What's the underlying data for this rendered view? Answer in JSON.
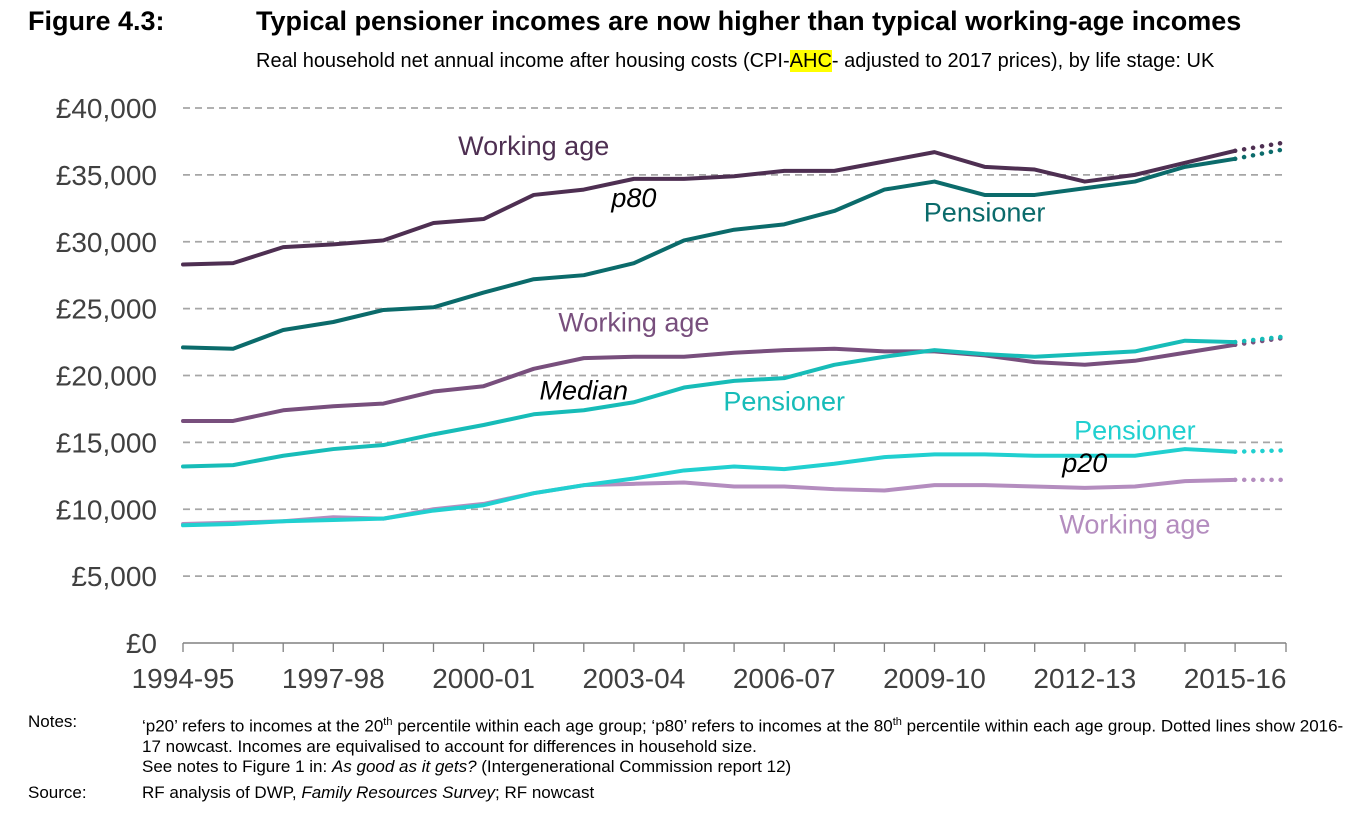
{
  "figure": {
    "label": "Figure 4.3:",
    "title": "Typical pensioner incomes are now higher than typical working-age incomes",
    "subtitle_pre": "Real household net annual income after housing costs (CPI-",
    "subtitle_highlight": "AHC",
    "subtitle_post": "- adjusted to 2017 prices), by life stage: UK"
  },
  "chart_data": {
    "type": "line",
    "x": [
      "1994-95",
      "1995-96",
      "1996-97",
      "1997-98",
      "1998-99",
      "1999-00",
      "2000-01",
      "2001-02",
      "2002-03",
      "2003-04",
      "2004-05",
      "2005-06",
      "2006-07",
      "2007-08",
      "2008-09",
      "2009-10",
      "2010-11",
      "2011-12",
      "2012-13",
      "2013-14",
      "2014-15",
      "2015-16",
      "2016-17"
    ],
    "x_tick_labels": [
      "1994-95",
      "1997-98",
      "2000-01",
      "2003-04",
      "2006-07",
      "2009-10",
      "2012-13",
      "2015-16"
    ],
    "y_tick_labels": [
      "£0",
      "£5,000",
      "£10,000",
      "£15,000",
      "£20,000",
      "£25,000",
      "£30,000",
      "£35,000",
      "£40,000"
    ],
    "ylim": [
      0,
      40000
    ],
    "grid": "horizontal dashed",
    "nowcast_from": "2015-16",
    "series": [
      {
        "id": "p80_working",
        "color": "#4e2f52",
        "values": [
          28300,
          28400,
          29600,
          29800,
          30100,
          31400,
          31700,
          33500,
          33900,
          34700,
          34700,
          34900,
          35300,
          35300,
          36000,
          36700,
          35600,
          35400,
          34500,
          35000,
          35900,
          36800,
          37400
        ]
      },
      {
        "id": "p80_pensioner",
        "color": "#0b6b6b",
        "values": [
          22100,
          22000,
          23400,
          24000,
          24900,
          25100,
          26200,
          27200,
          27500,
          28400,
          30100,
          30900,
          31300,
          32300,
          33900,
          34500,
          33500,
          33500,
          34000,
          34500,
          35600,
          36200,
          36900
        ]
      },
      {
        "id": "median_working",
        "color": "#784f7d",
        "values": [
          16600,
          16600,
          17400,
          17700,
          17900,
          18800,
          19200,
          20500,
          21300,
          21400,
          21400,
          21700,
          21900,
          22000,
          21800,
          21800,
          21500,
          21000,
          20800,
          21100,
          21700,
          22300,
          22800
        ]
      },
      {
        "id": "median_pensioner",
        "color": "#17bcb8",
        "values": [
          13200,
          13300,
          14000,
          14500,
          14800,
          15600,
          16300,
          17100,
          17400,
          18000,
          19100,
          19600,
          19800,
          20800,
          21400,
          21900,
          21600,
          21400,
          21600,
          21800,
          22600,
          22500,
          22900
        ]
      },
      {
        "id": "p20_working",
        "color": "#b48dbf",
        "values": [
          8900,
          9000,
          9100,
          9400,
          9300,
          10000,
          10400,
          11200,
          11800,
          11900,
          12000,
          11700,
          11700,
          11500,
          11400,
          11800,
          11800,
          11700,
          11600,
          11700,
          12100,
          12200,
          12200
        ]
      },
      {
        "id": "p20_pensioner",
        "color": "#21d0d0",
        "values": [
          8800,
          8900,
          9100,
          9200,
          9300,
          9900,
          10300,
          11200,
          11800,
          12300,
          12900,
          13200,
          13000,
          13400,
          13900,
          14100,
          14100,
          14000,
          14000,
          14000,
          14500,
          14300,
          14400
        ]
      }
    ],
    "annotations": [
      {
        "text": "Working age",
        "color": "#4e2f52",
        "italic": false,
        "at_x": "2001-02",
        "at_y": 36500
      },
      {
        "text": "p80",
        "color": "#000000",
        "italic": true,
        "at_x": "2003-04",
        "at_y": 32600
      },
      {
        "text": "Pensioner",
        "color": "#0b6b6b",
        "italic": false,
        "at_x": "2010-11",
        "at_y": 31500
      },
      {
        "text": "Working age",
        "color": "#784f7d",
        "italic": false,
        "at_x": "2003-04",
        "at_y": 23300
      },
      {
        "text": "Median",
        "color": "#000000",
        "italic": true,
        "at_x": "2002-03",
        "at_y": 18200
      },
      {
        "text": "Pensioner",
        "color": "#17bcb8",
        "italic": false,
        "at_x": "2006-07",
        "at_y": 17400
      },
      {
        "text": "Pensioner",
        "color": "#21d0d0",
        "italic": false,
        "at_x": "2013-14",
        "at_y": 15200
      },
      {
        "text": "p20",
        "color": "#000000",
        "italic": true,
        "at_x": "2012-13",
        "at_y": 12800
      },
      {
        "text": "Working age",
        "color": "#b48dbf",
        "italic": false,
        "at_x": "2013-14",
        "at_y": 8200
      }
    ]
  },
  "notes": {
    "label": "Notes:",
    "line1_pre": "‘p20’ refers to incomes at the 20",
    "sup1": "th",
    "line1_mid": " percentile within each age group; ‘p80’ refers to incomes at the 80",
    "sup2": "th",
    "line1_post": " percentile within each age group. Dotted lines show 2016-17 nowcast. Incomes are equivalised to account for differences in household size.",
    "line2_pre": "See notes to Figure 1 in: ",
    "line2_italic": "As good as it gets?",
    "line2_post": " (Intergenerational Commission report 12)"
  },
  "source": {
    "label": "Source:",
    "pre": "RF analysis of DWP, ",
    "italic": "Family Resources Survey",
    "post": "; RF nowcast"
  }
}
